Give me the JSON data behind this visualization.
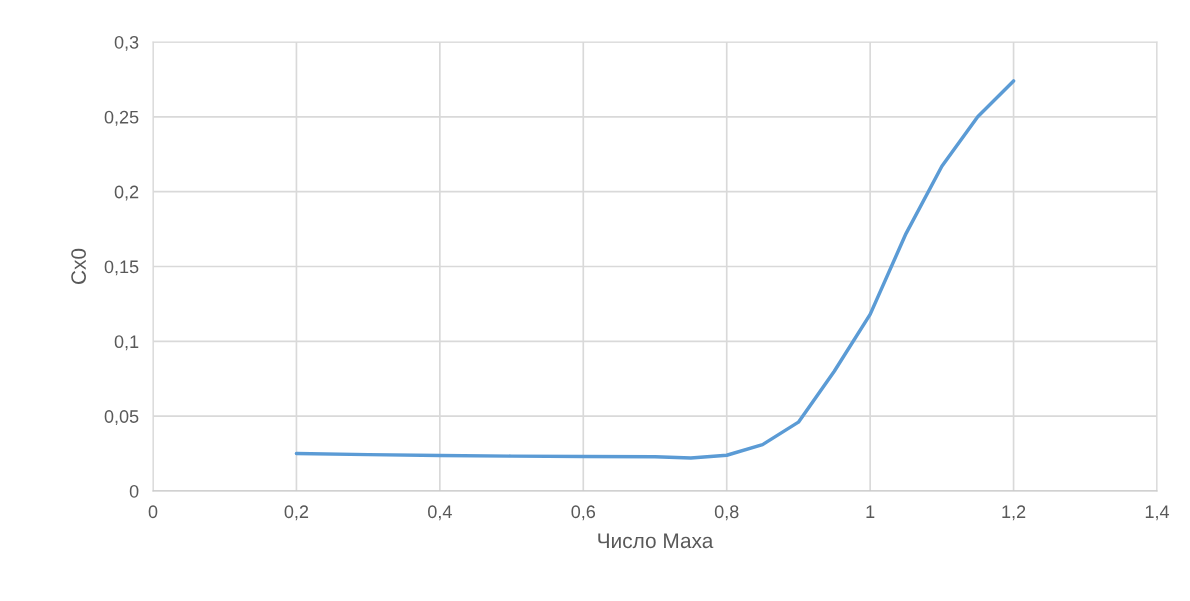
{
  "chart_data": {
    "type": "line",
    "xlabel": "Число Маха",
    "ylabel": "Cx0",
    "x": [
      0.2,
      0.3,
      0.4,
      0.5,
      0.6,
      0.7,
      0.75,
      0.8,
      0.85,
      0.9,
      0.95,
      1.0,
      1.05,
      1.1,
      1.15,
      1.2
    ],
    "series": [
      {
        "color": "#5b9bd5",
        "values": [
          0.025,
          0.0243,
          0.0237,
          0.0233,
          0.023,
          0.0229,
          0.022,
          0.0239,
          0.031,
          0.046,
          0.08,
          0.118,
          0.172,
          0.217,
          0.25,
          0.274
        ]
      }
    ],
    "xlim": [
      0,
      1.4
    ],
    "xticks": [
      {
        "value": 0,
        "label": "0"
      },
      {
        "value": 0.2,
        "label": "0,2"
      },
      {
        "value": 0.4,
        "label": "0,4"
      },
      {
        "value": 0.6,
        "label": "0,6"
      },
      {
        "value": 0.8,
        "label": "0,8"
      },
      {
        "value": 1,
        "label": "1"
      },
      {
        "value": 1.2,
        "label": "1,2"
      },
      {
        "value": 1.4,
        "label": "1,4"
      }
    ],
    "ylim": [
      0,
      0.3
    ],
    "yticks": [
      {
        "value": 0,
        "label": "0"
      },
      {
        "value": 0.05,
        "label": "0,05"
      },
      {
        "value": 0.1,
        "label": "0,1"
      },
      {
        "value": 0.15,
        "label": "0,15"
      },
      {
        "value": 0.2,
        "label": "0,2"
      },
      {
        "value": 0.25,
        "label": "0,25"
      },
      {
        "value": 0.3,
        "label": "0,3"
      }
    ],
    "grid": true,
    "legend": false,
    "marker": "none",
    "line_style": "solid"
  }
}
